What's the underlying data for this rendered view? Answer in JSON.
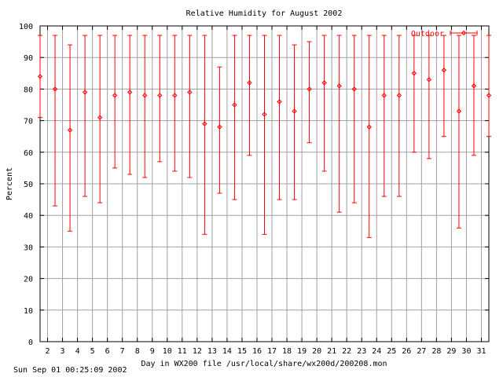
{
  "chart_data": {
    "type": "errorbar",
    "title": "Relative Humidity for August 2002",
    "xlabel": "Day in WX200 file /usr/local/share/wx200d/200208.mon",
    "ylabel": "Percent",
    "xlim": [
      1.5,
      31.5
    ],
    "ylim": [
      0,
      100
    ],
    "x_ticks": [
      2,
      3,
      4,
      5,
      6,
      7,
      8,
      9,
      10,
      11,
      12,
      13,
      14,
      15,
      16,
      17,
      18,
      19,
      20,
      21,
      22,
      23,
      24,
      25,
      26,
      27,
      28,
      29,
      30,
      31
    ],
    "y_ticks": [
      0,
      10,
      20,
      30,
      40,
      50,
      60,
      70,
      80,
      90,
      100
    ],
    "grid": true,
    "legend_position": "top-right",
    "series": [
      {
        "name": "Outdoor",
        "color": "#ff0000",
        "points": [
          {
            "x": 1.5,
            "low": 71,
            "avg": 84,
            "high": 97
          },
          {
            "x": 2.5,
            "low": 43,
            "avg": 80,
            "high": 97
          },
          {
            "x": 3.5,
            "low": 35,
            "avg": 67,
            "high": 94
          },
          {
            "x": 4.5,
            "low": 46,
            "avg": 79,
            "high": 97
          },
          {
            "x": 5.5,
            "low": 44,
            "avg": 71,
            "high": 97
          },
          {
            "x": 6.5,
            "low": 55,
            "avg": 78,
            "high": 97
          },
          {
            "x": 7.5,
            "low": 53,
            "avg": 79,
            "high": 97
          },
          {
            "x": 8.5,
            "low": 52,
            "avg": 78,
            "high": 97
          },
          {
            "x": 9.5,
            "low": 57,
            "avg": 78,
            "high": 97
          },
          {
            "x": 10.5,
            "low": 54,
            "avg": 78,
            "high": 97
          },
          {
            "x": 11.5,
            "low": 52,
            "avg": 79,
            "high": 97
          },
          {
            "x": 12.5,
            "low": 34,
            "avg": 69,
            "high": 97
          },
          {
            "x": 13.5,
            "low": 47,
            "avg": 68,
            "high": 87
          },
          {
            "x": 14.5,
            "low": 45,
            "avg": 75,
            "high": 97
          },
          {
            "x": 15.5,
            "low": 59,
            "avg": 82,
            "high": 97
          },
          {
            "x": 16.5,
            "low": 34,
            "avg": 72,
            "high": 97
          },
          {
            "x": 17.5,
            "low": 45,
            "avg": 76,
            "high": 97
          },
          {
            "x": 18.5,
            "low": 45,
            "avg": 73,
            "high": 94
          },
          {
            "x": 19.5,
            "low": 63,
            "avg": 80,
            "high": 95
          },
          {
            "x": 20.5,
            "low": 54,
            "avg": 82,
            "high": 97
          },
          {
            "x": 21.5,
            "low": 41,
            "avg": 81,
            "high": 97
          },
          {
            "x": 22.5,
            "low": 44,
            "avg": 80,
            "high": 97
          },
          {
            "x": 23.5,
            "low": 33,
            "avg": 68,
            "high": 97
          },
          {
            "x": 24.5,
            "low": 46,
            "avg": 78,
            "high": 97
          },
          {
            "x": 25.5,
            "low": 46,
            "avg": 78,
            "high": 97
          },
          {
            "x": 26.5,
            "low": 60,
            "avg": 85,
            "high": 97
          },
          {
            "x": 27.5,
            "low": 58,
            "avg": 83,
            "high": 97
          },
          {
            "x": 28.5,
            "low": 65,
            "avg": 86,
            "high": 97
          },
          {
            "x": 29.5,
            "low": 36,
            "avg": 73,
            "high": 97
          },
          {
            "x": 30.5,
            "low": 59,
            "avg": 81,
            "high": 97
          },
          {
            "x": 31.5,
            "low": 65,
            "avg": 78,
            "high": 97
          }
        ]
      }
    ]
  },
  "footer": {
    "timestamp": "Sun Sep 01 00:25:09 2002"
  }
}
